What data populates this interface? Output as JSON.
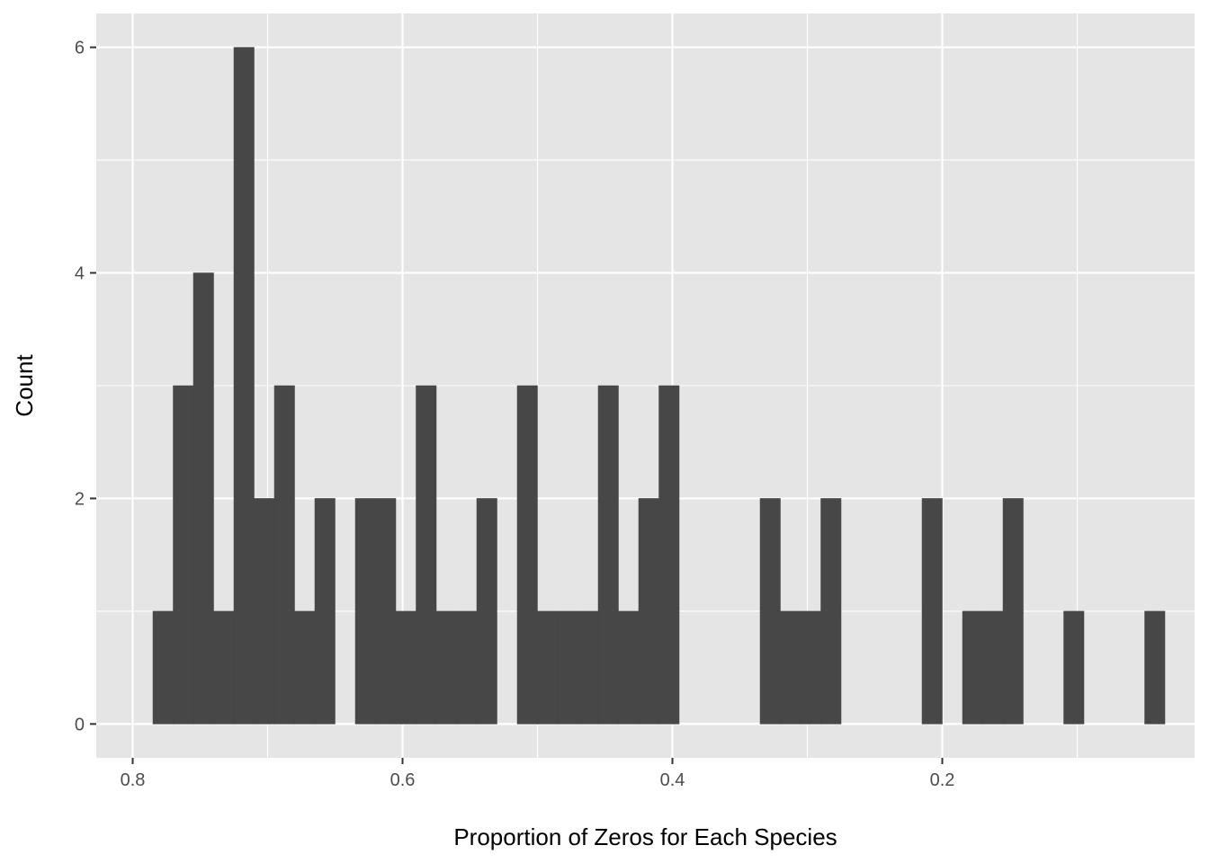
{
  "chart_data": {
    "type": "bar",
    "xlabel": "Proportion of Zeros for Each Species",
    "ylabel": "Count",
    "x_reversed": true,
    "xlim": [
      0.827,
      0.013
    ],
    "ylim": [
      -0.3,
      6.3
    ],
    "bin_width": 0.015,
    "x_ticks": [
      {
        "value": 0.8,
        "label": "0.8"
      },
      {
        "value": 0.6,
        "label": "0.6"
      },
      {
        "value": 0.4,
        "label": "0.4"
      },
      {
        "value": 0.2,
        "label": "0.2"
      }
    ],
    "x_minor_ticks": [
      0.7,
      0.5,
      0.3,
      0.1
    ],
    "y_ticks": [
      {
        "value": 0,
        "label": "0"
      },
      {
        "value": 2,
        "label": "2"
      },
      {
        "value": 4,
        "label": "4"
      },
      {
        "value": 6,
        "label": "6"
      }
    ],
    "y_minor_ticks": [
      1,
      3,
      5
    ],
    "grid": true,
    "bins": [
      {
        "x": 0.7775,
        "count": 1
      },
      {
        "x": 0.7625,
        "count": 3
      },
      {
        "x": 0.7475,
        "count": 4
      },
      {
        "x": 0.7325,
        "count": 1
      },
      {
        "x": 0.7175,
        "count": 6
      },
      {
        "x": 0.7025,
        "count": 2
      },
      {
        "x": 0.6875,
        "count": 3
      },
      {
        "x": 0.6725,
        "count": 1
      },
      {
        "x": 0.6575,
        "count": 2
      },
      {
        "x": 0.6275,
        "count": 2
      },
      {
        "x": 0.6125,
        "count": 2
      },
      {
        "x": 0.5975,
        "count": 1
      },
      {
        "x": 0.5825,
        "count": 3
      },
      {
        "x": 0.5675,
        "count": 1
      },
      {
        "x": 0.5525,
        "count": 1
      },
      {
        "x": 0.5375,
        "count": 2
      },
      {
        "x": 0.5075,
        "count": 3
      },
      {
        "x": 0.4925,
        "count": 1
      },
      {
        "x": 0.4775,
        "count": 1
      },
      {
        "x": 0.4625,
        "count": 1
      },
      {
        "x": 0.4475,
        "count": 3
      },
      {
        "x": 0.4325,
        "count": 1
      },
      {
        "x": 0.4175,
        "count": 2
      },
      {
        "x": 0.4025,
        "count": 3
      },
      {
        "x": 0.3275,
        "count": 2
      },
      {
        "x": 0.3125,
        "count": 1
      },
      {
        "x": 0.2975,
        "count": 1
      },
      {
        "x": 0.2825,
        "count": 2
      },
      {
        "x": 0.2075,
        "count": 2
      },
      {
        "x": 0.1775,
        "count": 1
      },
      {
        "x": 0.1625,
        "count": 1
      },
      {
        "x": 0.1475,
        "count": 2
      },
      {
        "x": 0.1025,
        "count": 1
      },
      {
        "x": 0.0425,
        "count": 1
      }
    ],
    "colors": {
      "panel": "#e5e5e5",
      "grid": "#ffffff",
      "bar": "#474747",
      "tick_text": "#4d4d4d",
      "tick_mark": "#333333",
      "title_text": "#000000"
    }
  }
}
